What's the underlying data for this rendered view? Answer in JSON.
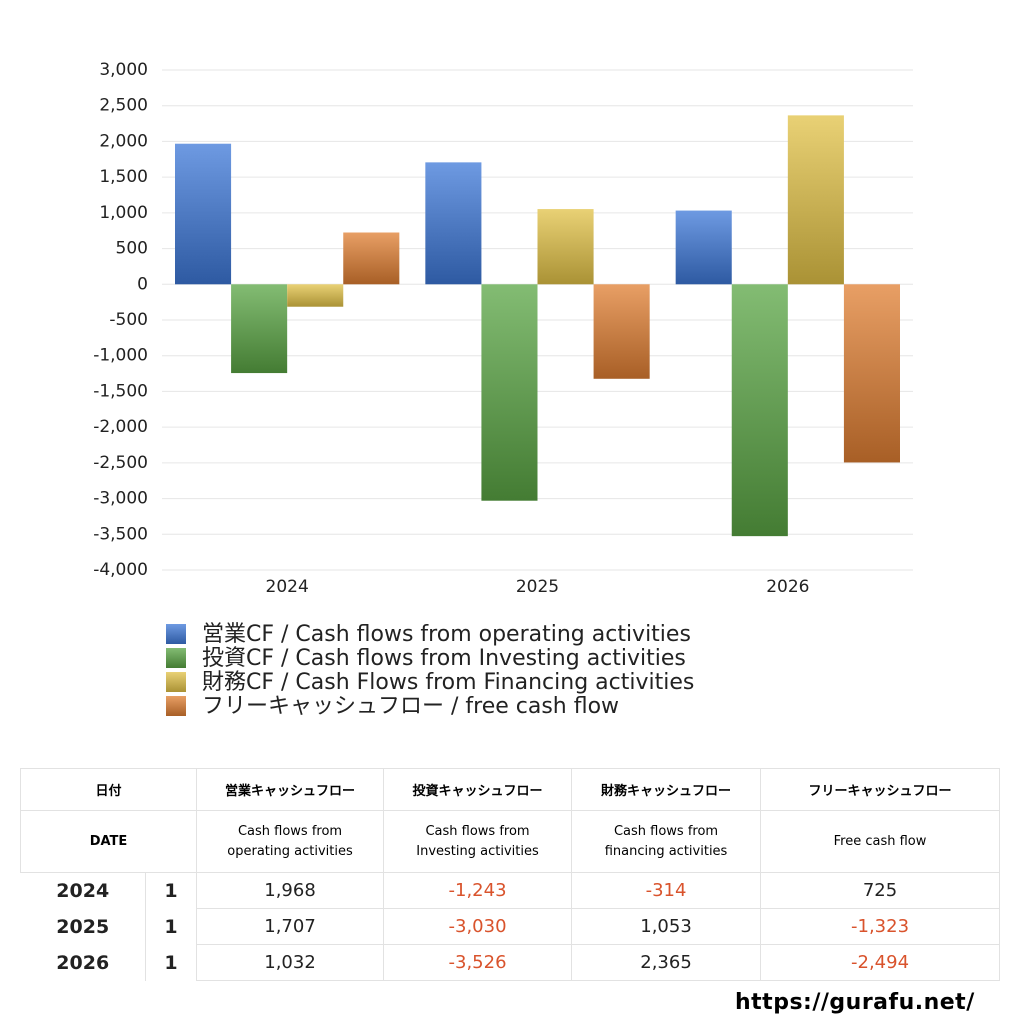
{
  "chart_data": {
    "type": "bar",
    "categories": [
      "2024",
      "2025",
      "2026"
    ],
    "series": [
      {
        "name": "営業CF / Cash flows from operating activities",
        "color": "#3d78d8",
        "values": [
          1968,
          1707,
          1032
        ]
      },
      {
        "name": "投資CF / Cash flows from Investing activities",
        "color": "#5aa544",
        "values": [
          -1243,
          -3030,
          -3526
        ]
      },
      {
        "name": "財務CF / Cash Flows from Financing activities",
        "color": "#e2c247",
        "values": [
          -314,
          1053,
          2365
        ]
      },
      {
        "name": "フリーキャッシュフロー / free cash flow",
        "color": "#e07f32",
        "values": [
          725,
          -1323,
          -2494
        ]
      }
    ],
    "ylim": [
      -4000,
      3000
    ],
    "yticks": [
      {
        "value": 3000,
        "label": "3,000"
      },
      {
        "value": 2500,
        "label": "2,500"
      },
      {
        "value": 2000,
        "label": "2,000"
      },
      {
        "value": 1500,
        "label": "1,500"
      },
      {
        "value": 1000,
        "label": "1,000"
      },
      500,
      0,
      -500,
      {
        "value": -1000,
        "label": "-1,000"
      },
      {
        "value": -1500,
        "label": "-1,500"
      },
      {
        "value": -2000,
        "label": "-2,000"
      },
      {
        "value": -2500,
        "label": "-2,500"
      },
      {
        "value": -3000,
        "label": "-3,000"
      },
      {
        "value": -3500,
        "label": "-3,500"
      },
      {
        "value": -4000,
        "label": "-4,000"
      }
    ],
    "grid": true
  },
  "table": {
    "header": {
      "date_jp": "日付",
      "date_en": "DATE",
      "columns": [
        {
          "jp": "営業キャッシュフロー",
          "en": "Cash flows from operating activities"
        },
        {
          "jp": "投資キャッシュフロー",
          "en": "Cash flows from Investing activities"
        },
        {
          "jp": "財務キャッシュフロー",
          "en": "Cash flows from financing activities"
        },
        {
          "jp": "フリーキャッシュフロー",
          "en": "Free cash flow"
        }
      ]
    },
    "rows": [
      {
        "year": "2024",
        "month": "1",
        "values": [
          "1,968",
          "-1,243",
          "-314",
          "725"
        ]
      },
      {
        "year": "2025",
        "month": "1",
        "values": [
          "1,707",
          "-3,030",
          "1,053",
          "-1,323"
        ]
      },
      {
        "year": "2026",
        "month": "1",
        "values": [
          "1,032",
          "-3,526",
          "2,365",
          "-2,494"
        ]
      }
    ],
    "negative_color": "#d9532c"
  },
  "footer": "https://gurafu.net/"
}
